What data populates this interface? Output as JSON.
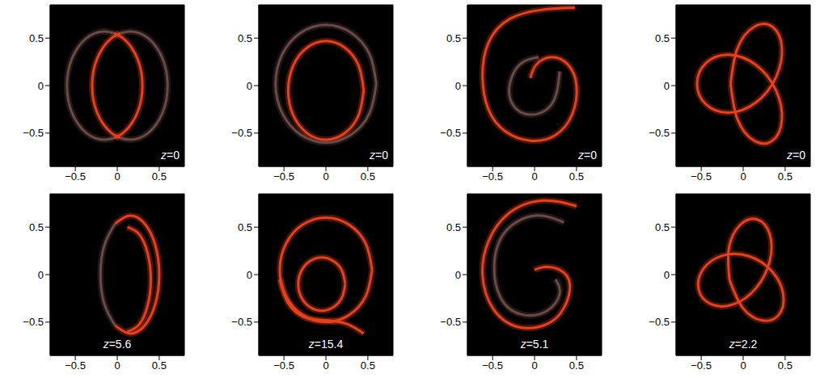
{
  "chart_data": [
    {
      "type": "line",
      "annotation": "z=0",
      "xlim": [
        -0.8,
        0.8
      ],
      "ylim": [
        -0.85,
        0.85
      ],
      "xticks": [
        {
          "value": -0.5,
          "label": "−0.5"
        },
        0,
        0.5
      ],
      "yticks": [
        {
          "value": -0.5,
          "label": "−0.5"
        },
        0,
        0.5
      ],
      "series": [
        {
          "color": "#6b4a44",
          "points": [
            [
              0.034,
              -0.551
            ],
            [
              0.15,
              -0.57
            ],
            [
              0.266,
              -0.551
            ],
            [
              0.375,
              -0.494
            ],
            [
              0.468,
              -0.403
            ],
            [
              0.54,
              -0.285
            ],
            [
              0.585,
              -0.148
            ],
            [
              0.6,
              0
            ],
            [
              0.585,
              0.148
            ],
            [
              0.54,
              0.285
            ],
            [
              0.468,
              0.403
            ],
            [
              0.375,
              0.494
            ],
            [
              0.266,
              0.551
            ],
            [
              0.15,
              0.57
            ],
            [
              0.034,
              0.551
            ]
          ]
        },
        {
          "color": "#6b4a44",
          "points": [
            [
              -0.034,
              -0.551
            ],
            [
              -0.15,
              -0.57
            ],
            [
              -0.266,
              -0.551
            ],
            [
              -0.375,
              -0.494
            ],
            [
              -0.468,
              -0.403
            ],
            [
              -0.54,
              -0.285
            ],
            [
              -0.585,
              -0.148
            ],
            [
              -0.6,
              0
            ],
            [
              -0.585,
              0.148
            ],
            [
              -0.54,
              0.285
            ],
            [
              -0.468,
              0.403
            ],
            [
              -0.375,
              0.494
            ],
            [
              -0.266,
              0.551
            ],
            [
              -0.15,
              0.57
            ],
            [
              -0.034,
              0.551
            ]
          ]
        },
        {
          "color": "#e8411a",
          "points": [
            [
              0.034,
              0.551
            ],
            [
              -0.075,
              0.494
            ],
            [
              -0.168,
              0.403
            ],
            [
              -0.24,
              0.285
            ],
            [
              -0.285,
              0.148
            ],
            [
              -0.3,
              0
            ],
            [
              -0.285,
              -0.148
            ],
            [
              -0.24,
              -0.285
            ],
            [
              -0.168,
              -0.403
            ],
            [
              -0.075,
              -0.494
            ],
            [
              0.034,
              -0.551
            ]
          ]
        },
        {
          "color": "#e8411a",
          "points": [
            [
              -0.034,
              0.551
            ],
            [
              0.075,
              0.494
            ],
            [
              0.168,
              0.403
            ],
            [
              0.24,
              0.285
            ],
            [
              0.285,
              0.148
            ],
            [
              0.3,
              0
            ],
            [
              0.285,
              -0.148
            ],
            [
              0.24,
              -0.285
            ],
            [
              0.168,
              -0.403
            ],
            [
              0.075,
              -0.494
            ],
            [
              -0.034,
              -0.551
            ]
          ]
        }
      ]
    },
    {
      "type": "line",
      "annotation": "z=0",
      "xlim": [
        -0.8,
        0.8
      ],
      "ylim": [
        -0.85,
        0.85
      ],
      "xticks": [
        {
          "value": -0.5,
          "label": "−0.5"
        },
        0,
        0.5
      ],
      "yticks": [
        {
          "value": -0.5,
          "label": "−0.5"
        },
        0,
        0.5
      ],
      "series": [
        {
          "color": "#6b4a44",
          "points": [
            [
              0.6,
              0.02
            ],
            [
              0.52,
              0.33
            ],
            [
              0.3,
              0.557
            ],
            [
              0,
              0.64
            ],
            [
              -0.3,
              0.557
            ],
            [
              -0.52,
              0.33
            ],
            [
              -0.6,
              0.02
            ],
            [
              -0.52,
              -0.29
            ],
            [
              -0.3,
              -0.517
            ],
            [
              0,
              -0.6
            ],
            [
              0.3,
              -0.517
            ],
            [
              0.52,
              -0.29
            ],
            [
              0.6,
              0.02
            ]
          ]
        },
        {
          "color": "#e8411a",
          "points": [
            [
              0.45,
              -0.05
            ],
            [
              0.39,
              0.21
            ],
            [
              0.225,
              0.4
            ],
            [
              0,
              0.47
            ],
            [
              -0.225,
              0.4
            ],
            [
              -0.39,
              0.21
            ],
            [
              -0.45,
              -0.05
            ],
            [
              -0.39,
              -0.31
            ],
            [
              -0.225,
              -0.5
            ],
            [
              0,
              -0.57
            ],
            [
              0.225,
              -0.5
            ],
            [
              0.39,
              -0.31
            ],
            [
              0.45,
              -0.05
            ]
          ]
        }
      ]
    },
    {
      "type": "line",
      "annotation": "z=0",
      "xlim": [
        -0.8,
        0.8
      ],
      "ylim": [
        -0.85,
        0.85
      ],
      "xticks": [
        {
          "value": -0.5,
          "label": "−0.5"
        },
        0,
        0.5
      ],
      "yticks": [
        {
          "value": -0.5,
          "label": "−0.5"
        },
        0,
        0.5
      ],
      "series": [
        {
          "color": "#6b4a44",
          "points": [
            [
              0.3,
              0.15
            ],
            [
              0.2,
              -0.2
            ],
            [
              -0.1,
              -0.3
            ],
            [
              -0.3,
              -0.1
            ],
            [
              -0.2,
              0.2
            ],
            [
              0.05,
              0.3
            ]
          ]
        },
        {
          "color": "#e8411a",
          "points": [
            [
              0.48,
              0.82
            ],
            [
              0.1,
              0.8
            ],
            [
              -0.3,
              0.7
            ],
            [
              -0.55,
              0.45
            ],
            [
              -0.62,
              0.1
            ],
            [
              -0.55,
              -0.25
            ],
            [
              -0.35,
              -0.48
            ],
            [
              -0.05,
              -0.58
            ],
            [
              0.25,
              -0.52
            ],
            [
              0.45,
              -0.3
            ],
            [
              0.5,
              0
            ],
            [
              0.4,
              0.22
            ],
            [
              0.2,
              0.3
            ],
            [
              0.02,
              0.22
            ],
            [
              -0.05,
              0.08
            ]
          ]
        }
      ]
    },
    {
      "type": "line",
      "annotation": "z=0",
      "xlim": [
        -0.8,
        0.8
      ],
      "ylim": [
        -0.85,
        0.85
      ],
      "xticks": [
        {
          "value": -0.5,
          "label": "−0.5"
        },
        0,
        0.5
      ],
      "yticks": [
        {
          "value": -0.5,
          "label": "−0.5"
        },
        0,
        0.5
      ],
      "series": [
        {
          "color": "#e8411a",
          "points": [
            [
              -0.15,
              0.02
            ],
            [
              -0.068,
              -0.354
            ],
            [
              0.134,
              -0.581
            ],
            [
              0.35,
              -0.578
            ],
            [
              0.461,
              -0.364
            ],
            [
              0.391,
              -0.049
            ],
            [
              0.15,
              0.219
            ],
            [
              -0.173,
              0.325
            ],
            [
              -0.444,
              0.237
            ],
            [
              -0.55,
              0.02
            ],
            [
              -0.444,
              -0.197
            ],
            [
              -0.173,
              -0.285
            ],
            [
              0.15,
              -0.179
            ],
            [
              0.391,
              0.089
            ],
            [
              0.461,
              0.404
            ],
            [
              0.35,
              0.618
            ],
            [
              0.134,
              0.621
            ],
            [
              -0.068,
              0.394
            ],
            [
              -0.15,
              0.02
            ]
          ]
        }
      ]
    },
    {
      "type": "line",
      "annotation": "z=5.6",
      "xlim": [
        -0.8,
        0.8
      ],
      "ylim": [
        -0.85,
        0.85
      ],
      "xticks": [
        {
          "value": -0.5,
          "label": "−0.5"
        },
        0,
        0.5
      ],
      "yticks": [
        {
          "value": -0.5,
          "label": "−0.5"
        },
        0,
        0.5
      ],
      "series": [
        {
          "color": "#6b4a44",
          "points": [
            [
              -0.025,
              0.537
            ],
            [
              -0.153,
              0.31
            ],
            [
              -0.2,
              0
            ],
            [
              -0.153,
              -0.31
            ],
            [
              -0.025,
              -0.537
            ]
          ]
        },
        {
          "color": "#e8411a",
          "points": [
            [
              -0.025,
              -0.537
            ],
            [
              0.15,
              -0.62
            ],
            [
              0.325,
              -0.537
            ],
            [
              0.453,
              -0.31
            ],
            [
              0.5,
              0
            ],
            [
              0.453,
              0.31
            ],
            [
              0.325,
              0.537
            ],
            [
              0.15,
              0.62
            ],
            [
              -0.025,
              0.537
            ]
          ]
        },
        {
          "color": "#e8411a",
          "points": [
            [
              0.12,
              -0.6
            ],
            [
              0.26,
              -0.526
            ],
            [
              0.362,
              -0.325
            ],
            [
              0.4,
              -0.05
            ],
            [
              0.362,
              0.225
            ],
            [
              0.26,
              0.426
            ],
            [
              0.12,
              0.5
            ]
          ]
        }
      ]
    },
    {
      "type": "line",
      "annotation": "z=15.4",
      "xlim": [
        -0.8,
        0.8
      ],
      "ylim": [
        -0.85,
        0.85
      ],
      "xticks": [
        {
          "value": -0.5,
          "label": "−0.5"
        },
        0,
        0.5
      ],
      "yticks": [
        {
          "value": -0.5,
          "label": "−0.5"
        },
        0,
        0.5
      ],
      "series": [
        {
          "color": "#e8411a",
          "points": [
            [
              0.55,
              0.05
            ],
            [
              0.476,
              0.325
            ],
            [
              0.275,
              0.526
            ],
            [
              0,
              0.6
            ],
            [
              -0.275,
              0.526
            ],
            [
              -0.476,
              0.325
            ],
            [
              -0.55,
              0.05
            ],
            [
              -0.476,
              -0.225
            ],
            [
              -0.275,
              -0.426
            ],
            [
              0,
              -0.5
            ],
            [
              0.275,
              -0.426
            ],
            [
              0.476,
              -0.225
            ],
            [
              0.55,
              0.05
            ]
          ]
        },
        {
          "color": "#e8411a",
          "points": [
            [
              0.23,
              -0.1
            ],
            [
              0.192,
              0.04
            ],
            [
              0.09,
              0.142
            ],
            [
              -0.05,
              0.18
            ],
            [
              -0.19,
              0.142
            ],
            [
              -0.292,
              0.04
            ],
            [
              -0.33,
              -0.1
            ],
            [
              -0.292,
              -0.24
            ],
            [
              -0.19,
              -0.342
            ],
            [
              -0.05,
              -0.38
            ],
            [
              0.09,
              -0.342
            ],
            [
              0.192,
              -0.24
            ],
            [
              0.23,
              -0.1
            ]
          ]
        },
        {
          "color": "#e8411a",
          "points": [
            [
              -0.55,
              -0.05
            ],
            [
              -0.45,
              -0.3
            ],
            [
              -0.25,
              -0.45
            ],
            [
              0,
              -0.48
            ],
            [
              0.25,
              -0.52
            ],
            [
              0.45,
              -0.62
            ]
          ]
        }
      ]
    },
    {
      "type": "line",
      "annotation": "z=5.1",
      "xlim": [
        -0.8,
        0.8
      ],
      "ylim": [
        -0.85,
        0.85
      ],
      "xticks": [
        {
          "value": -0.5,
          "label": "−0.5"
        },
        0,
        0.5
      ],
      "yticks": [
        {
          "value": -0.5,
          "label": "−0.5"
        },
        0,
        0.5
      ],
      "series": [
        {
          "color": "#6b4a44",
          "points": [
            [
              0.35,
              0.55
            ],
            [
              0,
              0.62
            ],
            [
              -0.35,
              0.45
            ],
            [
              -0.48,
              0.1
            ],
            [
              -0.4,
              -0.25
            ],
            [
              -0.15,
              -0.42
            ],
            [
              0.15,
              -0.38
            ],
            [
              0.3,
              -0.2
            ],
            [
              0.25,
              -0.05
            ]
          ]
        },
        {
          "color": "#e8411a",
          "points": [
            [
              0.5,
              0.72
            ],
            [
              0.1,
              0.78
            ],
            [
              -0.3,
              0.65
            ],
            [
              -0.55,
              0.35
            ],
            [
              -0.62,
              0
            ],
            [
              -0.5,
              -0.35
            ],
            [
              -0.2,
              -0.55
            ],
            [
              0.15,
              -0.52
            ],
            [
              0.35,
              -0.35
            ],
            [
              0.42,
              -0.1
            ],
            [
              0.3,
              0.05
            ],
            [
              0.12,
              0.08
            ],
            [
              0,
              0.05
            ]
          ]
        }
      ]
    },
    {
      "type": "line",
      "annotation": "z=2.2",
      "xlim": [
        -0.8,
        0.8
      ],
      "ylim": [
        -0.85,
        0.85
      ],
      "xticks": [
        {
          "value": -0.5,
          "label": "−0.5"
        },
        0,
        0.5
      ],
      "yticks": [
        {
          "value": -0.5,
          "label": "−0.5"
        },
        0,
        0.5
      ],
      "series": [
        {
          "color": "#e8411a",
          "points": [
            [
              -0.164,
              -0.052
            ],
            [
              -0.009,
              -0.345
            ],
            [
              0.226,
              -0.483
            ],
            [
              0.423,
              -0.424
            ],
            [
              0.479,
              -0.216
            ],
            [
              0.348,
              0.03
            ],
            [
              0.069,
              0.193
            ],
            [
              -0.25,
              0.199
            ],
            [
              -0.48,
              0.054
            ],
            [
              -0.531,
              -0.155
            ],
            [
              -0.387,
              -0.31
            ],
            [
              -0.119,
              -0.314
            ],
            [
              0.154,
              -0.141
            ],
            [
              0.318,
              0.147
            ],
            [
              0.315,
              0.429
            ],
            [
              0.167,
              0.58
            ],
            [
              -0.032,
              0.527
            ],
            [
              -0.169,
              0.284
            ],
            [
              -0.164,
              -0.052
            ]
          ]
        }
      ]
    }
  ]
}
